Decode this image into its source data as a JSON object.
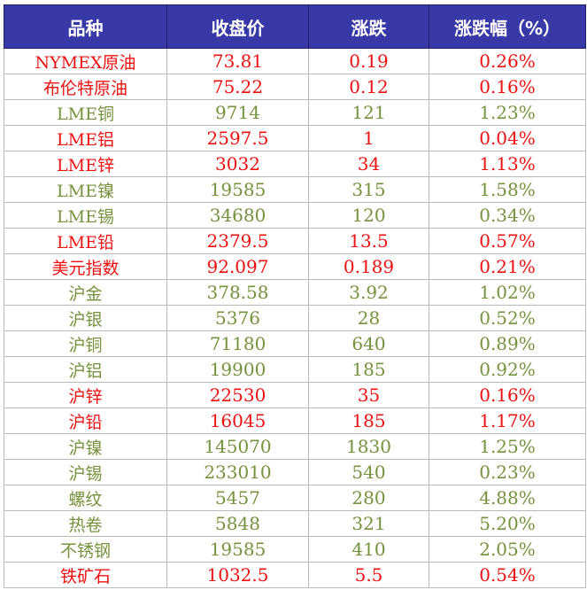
{
  "columns": [
    "品种",
    "收盘价",
    "涨跌",
    "涨跌幅（%）"
  ],
  "colors": {
    "header_bg": "#3838a6",
    "header_text": "#ffffff",
    "red": "#ee1111",
    "green": "#76923c"
  },
  "rows": [
    {
      "name": "NYMEX原油",
      "close": "73.81",
      "change": "0.19",
      "pct": "0.26%",
      "color": "red"
    },
    {
      "name": "布伦特原油",
      "close": "75.22",
      "change": "0.12",
      "pct": "0.16%",
      "color": "red"
    },
    {
      "name": "LME铜",
      "close": "9714",
      "change": "121",
      "pct": "1.23%",
      "color": "green"
    },
    {
      "name": "LME铝",
      "close": "2597.5",
      "change": "1",
      "pct": "0.04%",
      "color": "red"
    },
    {
      "name": "LME锌",
      "close": "3032",
      "change": "34",
      "pct": "1.13%",
      "color": "red"
    },
    {
      "name": "LME镍",
      "close": "19585",
      "change": "315",
      "pct": "1.58%",
      "color": "green"
    },
    {
      "name": "LME锡",
      "close": "34680",
      "change": "120",
      "pct": "0.34%",
      "color": "green"
    },
    {
      "name": "LME铅",
      "close": "2379.5",
      "change": "13.5",
      "pct": "0.57%",
      "color": "red"
    },
    {
      "name": "美元指数",
      "close": "92.097",
      "change": "0.189",
      "pct": "0.21%",
      "color": "red"
    },
    {
      "name": "沪金",
      "close": "378.58",
      "change": "3.92",
      "pct": "1.02%",
      "color": "green"
    },
    {
      "name": "沪银",
      "close": "5376",
      "change": "28",
      "pct": "0.52%",
      "color": "green"
    },
    {
      "name": "沪铜",
      "close": "71180",
      "change": "640",
      "pct": "0.89%",
      "color": "green"
    },
    {
      "name": "沪铝",
      "close": "19900",
      "change": "185",
      "pct": "0.92%",
      "color": "green"
    },
    {
      "name": "沪锌",
      "close": "22530",
      "change": "35",
      "pct": "0.16%",
      "color": "red"
    },
    {
      "name": "沪铅",
      "close": "16045",
      "change": "185",
      "pct": "1.17%",
      "color": "red"
    },
    {
      "name": "沪镍",
      "close": "145070",
      "change": "1830",
      "pct": "1.25%",
      "color": "green"
    },
    {
      "name": "沪锡",
      "close": "233010",
      "change": "540",
      "pct": "0.23%",
      "color": "green"
    },
    {
      "name": "螺纹",
      "close": "5457",
      "change": "280",
      "pct": "4.88%",
      "color": "green"
    },
    {
      "name": "热卷",
      "close": "5848",
      "change": "321",
      "pct": "5.20%",
      "color": "green"
    },
    {
      "name": "不锈钢",
      "close": "19585",
      "change": "410",
      "pct": "2.05%",
      "color": "green"
    },
    {
      "name": "铁矿石",
      "close": "1032.5",
      "change": "5.5",
      "pct": "0.54%",
      "color": "red"
    }
  ]
}
